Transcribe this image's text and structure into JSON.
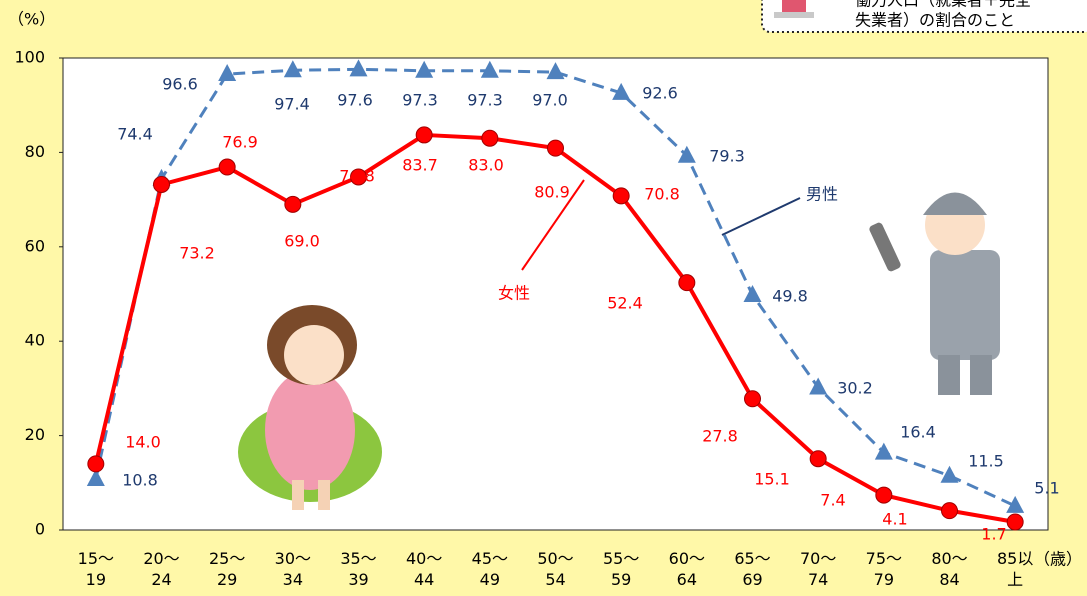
{
  "chart_data": {
    "type": "line",
    "y_unit": "（%）",
    "x_unit": "（歳）",
    "note": [
      "働力人口（就業者＋完全",
      "失業者）の割合のこと"
    ],
    "categories": [
      "15〜19",
      "20〜24",
      "25〜29",
      "30〜34",
      "35〜39",
      "40〜44",
      "45〜49",
      "50〜54",
      "55〜59",
      "60〜64",
      "65〜69",
      "70〜74",
      "75〜79",
      "80〜84",
      "85以上"
    ],
    "series": [
      {
        "name": "男性",
        "color": "#4f81bd",
        "dashed": true,
        "marker": "triangle",
        "values": [
          10.8,
          74.4,
          96.6,
          97.4,
          97.6,
          97.3,
          97.3,
          97,
          92.6,
          79.3,
          49.8,
          30.2,
          16.4,
          11.5,
          5.1
        ],
        "value_labels": [
          "10.8",
          "74.4",
          "96.6",
          "97.4",
          "97.6",
          "97.3",
          "97.3",
          "97.0",
          "92.6",
          "79.3",
          "49.8",
          "30.2",
          "16.4",
          "11.5",
          "5.1"
        ]
      },
      {
        "name": "女性",
        "color": "#ff0000",
        "dashed": false,
        "marker": "circle",
        "values": [
          14,
          73.2,
          76.9,
          69,
          74.8,
          83.7,
          83,
          80.9,
          70.8,
          52.4,
          27.8,
          15.1,
          7.4,
          4.1,
          1.7
        ],
        "value_labels": [
          "14.0",
          "73.2",
          "76.9",
          "69.0",
          "74.8",
          "83.7",
          "83.0",
          "80.9",
          "70.8",
          "52.4",
          "27.8",
          "15.1",
          "7.4",
          "4.1",
          "1.7"
        ]
      }
    ],
    "ylim": [
      0,
      100
    ],
    "yticks": [
      0,
      20,
      40,
      60,
      80,
      100
    ],
    "grid": false
  }
}
